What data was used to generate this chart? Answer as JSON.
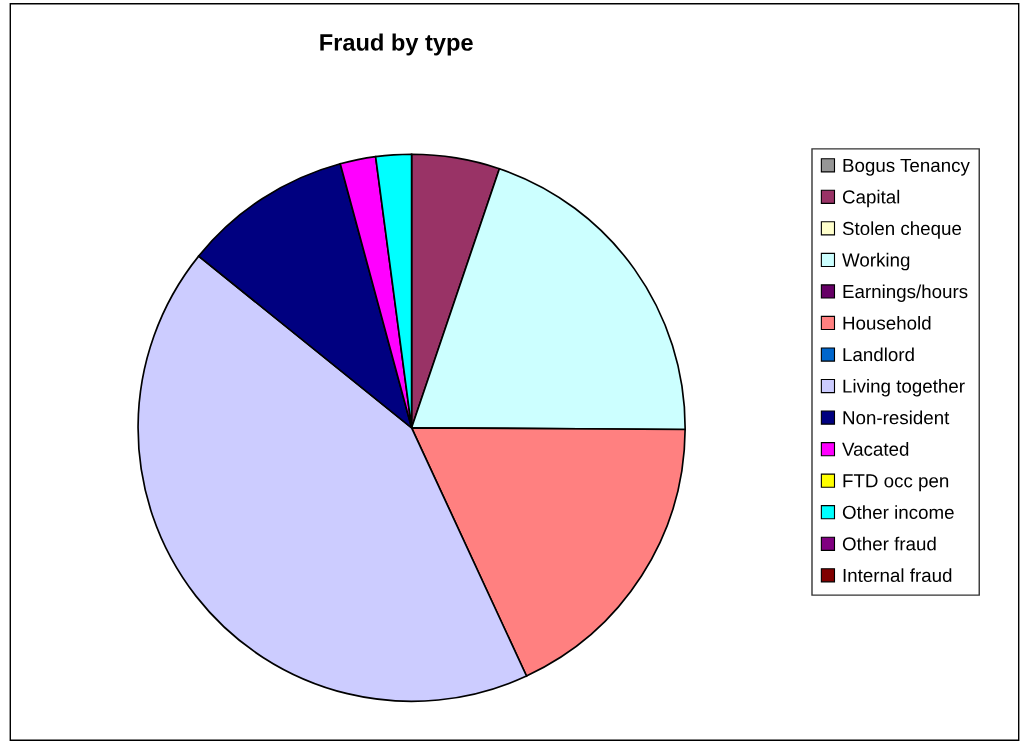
{
  "chart_data": {
    "type": "pie",
    "title": "Fraud by type",
    "categories": [
      "Bogus Tenancy",
      "Capital",
      "Stolen cheque",
      "Working",
      "Earnings/hours",
      "Household",
      "Landlord",
      "Living together",
      "Non-resident",
      "Vacated",
      "FTD occ pen",
      "Other income",
      "Other fraud",
      "Internal fraud"
    ],
    "values": [
      0,
      5.2,
      0,
      19.9,
      0,
      18.0,
      0,
      42.7,
      10.0,
      2.1,
      0,
      2.1,
      0,
      0
    ],
    "colors": [
      "#969696",
      "#993366",
      "#ffffcc",
      "#ccffff",
      "#660066",
      "#ff8080",
      "#0066cc",
      "#ccccff",
      "#000080",
      "#ff00ff",
      "#ffff00",
      "#00ffff",
      "#800080",
      "#800000"
    ],
    "legend": "right"
  }
}
